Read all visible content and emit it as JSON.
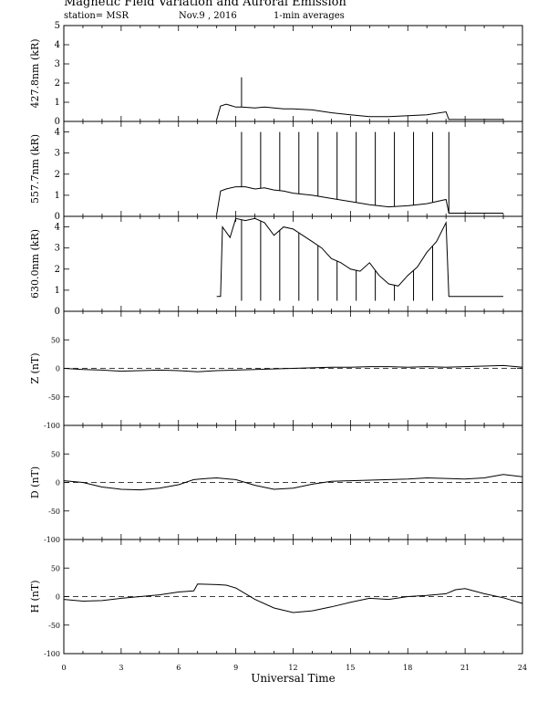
{
  "header": {
    "title": "Magnetic Field Variation and Auroral Emission",
    "station": "station= MSR",
    "date": "Nov.9  , 2016",
    "averaging": "1-min averages"
  },
  "chart_data": [
    {
      "type": "line",
      "ylabel": "427.8nm (kR)",
      "ylim": [
        0,
        5
      ],
      "yticks": [
        0,
        1,
        2,
        3,
        4,
        5
      ],
      "x": [
        8.0,
        8.2,
        8.5,
        9.0,
        9.3,
        10.0,
        10.5,
        11.0,
        11.5,
        12.0,
        13.0,
        14.0,
        15.0,
        16.0,
        17.0,
        18.0,
        19.0,
        20.0,
        20.15,
        21.0,
        22.0,
        23.0
      ],
      "values": [
        0.1,
        0.8,
        0.9,
        0.75,
        0.75,
        0.7,
        0.75,
        0.7,
        0.65,
        0.65,
        0.6,
        0.45,
        0.35,
        0.25,
        0.25,
        0.3,
        0.35,
        0.5,
        0.1,
        0.1,
        0.1,
        0.1
      ],
      "spikes": [
        {
          "x": 9.3,
          "y": 2.3
        }
      ]
    },
    {
      "type": "line",
      "ylabel": "557.7nm (kR)",
      "ylim": [
        0,
        4.5
      ],
      "yticks": [
        0,
        1,
        2,
        3,
        4
      ],
      "x": [
        8.0,
        8.2,
        8.5,
        9.0,
        9.5,
        10.0,
        10.5,
        11.0,
        11.5,
        12.0,
        13.0,
        14.0,
        15.0,
        16.0,
        17.0,
        18.0,
        19.0,
        20.0,
        20.15,
        21.0,
        22.0,
        23.0
      ],
      "values": [
        0.1,
        1.2,
        1.3,
        1.4,
        1.4,
        1.3,
        1.35,
        1.25,
        1.2,
        1.1,
        1.0,
        0.85,
        0.7,
        0.55,
        0.45,
        0.5,
        0.6,
        0.8,
        0.15,
        0.15,
        0.15,
        0.15
      ],
      "spikes": [
        {
          "x": 9.3,
          "y": 4.0
        },
        {
          "x": 10.3,
          "y": 4.0
        },
        {
          "x": 11.3,
          "y": 4.0
        },
        {
          "x": 12.3,
          "y": 4.0
        },
        {
          "x": 13.3,
          "y": 4.0
        },
        {
          "x": 14.3,
          "y": 4.0
        },
        {
          "x": 15.3,
          "y": 4.0
        },
        {
          "x": 16.3,
          "y": 4.0
        },
        {
          "x": 17.3,
          "y": 4.0
        },
        {
          "x": 18.3,
          "y": 4.0
        },
        {
          "x": 19.3,
          "y": 4.0
        },
        {
          "x": 20.15,
          "y": 4.0
        }
      ]
    },
    {
      "type": "line",
      "ylabel": "630.0nm (kR)",
      "ylim": [
        0,
        4.5
      ],
      "yticks": [
        0,
        1,
        2,
        3,
        4
      ],
      "x": [
        8.0,
        8.2,
        8.3,
        8.7,
        9.0,
        9.5,
        10.0,
        10.5,
        11.0,
        11.5,
        12.0,
        12.5,
        13.0,
        13.5,
        14.0,
        14.5,
        15.0,
        15.5,
        16.0,
        16.5,
        17.0,
        17.5,
        18.0,
        18.5,
        19.0,
        19.5,
        20.0,
        20.15,
        21.0,
        22.0,
        23.0
      ],
      "values": [
        0.7,
        0.7,
        4.0,
        3.5,
        4.4,
        4.3,
        4.4,
        4.2,
        3.6,
        4.0,
        3.9,
        3.6,
        3.3,
        3.0,
        2.5,
        2.3,
        2.0,
        1.9,
        2.3,
        1.7,
        1.3,
        1.2,
        1.7,
        2.1,
        2.8,
        3.3,
        4.2,
        0.7,
        0.7,
        0.7,
        0.7
      ],
      "spikes": [
        {
          "x": 9.3,
          "y": 0.5
        },
        {
          "x": 10.3,
          "y": 0.5
        },
        {
          "x": 11.3,
          "y": 0.5
        },
        {
          "x": 12.3,
          "y": 0.5
        },
        {
          "x": 13.3,
          "y": 0.5
        },
        {
          "x": 14.3,
          "y": 0.5
        },
        {
          "x": 15.3,
          "y": 0.5
        },
        {
          "x": 16.3,
          "y": 0.5
        },
        {
          "x": 17.3,
          "y": 0.5
        },
        {
          "x": 18.3,
          "y": 0.5
        },
        {
          "x": 19.3,
          "y": 0.5
        }
      ]
    },
    {
      "type": "line",
      "ylabel": "Z (nT)",
      "ylim": [
        -100,
        100
      ],
      "yticks": [
        -100,
        -50,
        0,
        50
      ],
      "zero_line": true,
      "x": [
        0,
        1,
        2,
        3,
        4,
        5,
        6,
        7,
        8,
        9,
        10,
        11,
        12,
        13,
        14,
        15,
        16,
        17,
        18,
        19,
        20,
        21,
        22,
        23,
        24
      ],
      "values": [
        0,
        -2,
        -3,
        -5,
        -4,
        -3,
        -4,
        -6,
        -4,
        -3,
        -2,
        -1,
        0,
        1,
        2,
        2,
        3,
        3,
        2,
        3,
        2,
        3,
        4,
        5,
        2
      ]
    },
    {
      "type": "line",
      "ylabel": "D (nT)",
      "ylim": [
        -100,
        100
      ],
      "yticks": [
        -100,
        -50,
        0,
        50
      ],
      "zero_line": true,
      "x": [
        0,
        1,
        2,
        3,
        4,
        5,
        6,
        6.8,
        7.5,
        8,
        9,
        10,
        11,
        12,
        13,
        14,
        15,
        16,
        17,
        18,
        19,
        20,
        21,
        22,
        23,
        24
      ],
      "values": [
        3,
        0,
        -8,
        -12,
        -13,
        -10,
        -4,
        5,
        7,
        8,
        5,
        -5,
        -12,
        -10,
        -3,
        2,
        3,
        4,
        5,
        6,
        8,
        7,
        6,
        8,
        14,
        10
      ]
    },
    {
      "type": "line",
      "ylabel": "H (nT)",
      "ylim": [
        -100,
        100
      ],
      "yticks": [
        -100,
        -50,
        0,
        50
      ],
      "zero_line": true,
      "x": [
        0,
        1,
        2,
        3,
        4,
        5,
        6,
        6.8,
        7,
        8,
        8.5,
        9,
        10,
        11,
        12,
        13,
        14,
        15,
        16,
        17,
        18,
        19,
        20,
        20.5,
        21,
        22,
        23,
        24
      ],
      "values": [
        -5,
        -8,
        -7,
        -3,
        0,
        3,
        8,
        10,
        22,
        21,
        20,
        15,
        -5,
        -20,
        -28,
        -25,
        -18,
        -10,
        -3,
        -5,
        0,
        2,
        5,
        12,
        14,
        5,
        -2,
        -12
      ]
    }
  ],
  "x_axis": {
    "label": "Universal Time",
    "xlim": [
      0,
      24
    ],
    "tick_labels": [
      "0",
      "3",
      "6",
      "9",
      "12",
      "15",
      "18",
      "21",
      "24"
    ]
  }
}
